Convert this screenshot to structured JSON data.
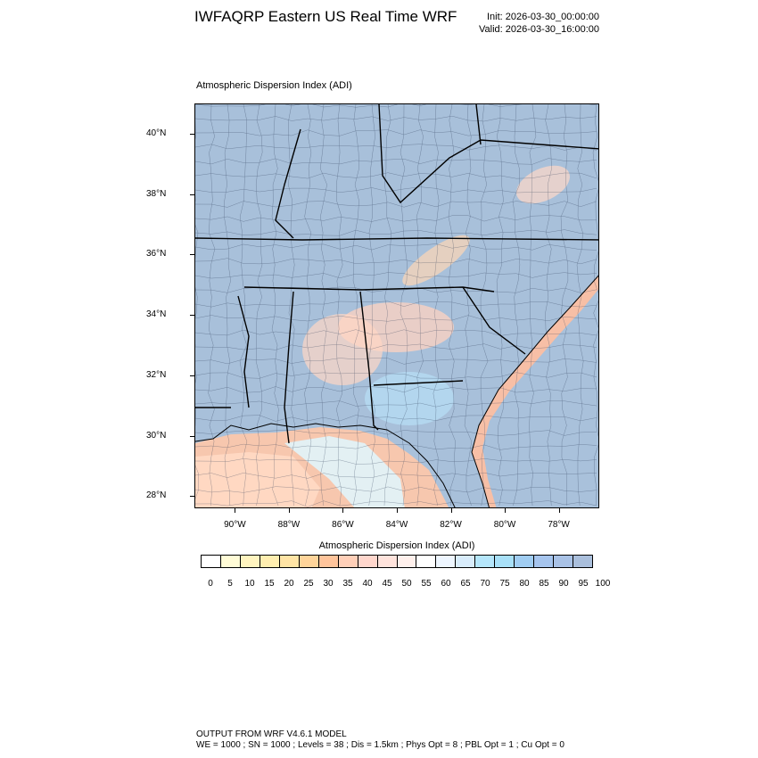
{
  "header": {
    "title": "IWFAQRP Eastern US Real Time WRF",
    "init": "Init: 2026-03-30_00:00:00",
    "valid": "Valid: 2026-03-30_16:00:00"
  },
  "plot": {
    "label": "Atmospheric Dispersion Index   (ADI)",
    "lat_ticks": [
      "40°N",
      "38°N",
      "36°N",
      "34°N",
      "32°N",
      "30°N",
      "28°N"
    ],
    "lon_ticks": [
      "90°W",
      "88°W",
      "86°W",
      "84°W",
      "82°W",
      "80°W",
      "78°W"
    ],
    "lat_values": [
      40,
      38,
      36,
      34,
      32,
      30,
      28
    ],
    "lon_values": [
      -90,
      -88,
      -86,
      -84,
      -82,
      -80,
      -78
    ],
    "lat_range": [
      27.6,
      41.0
    ],
    "lon_range": [
      -91.5,
      -76.5
    ]
  },
  "colorbar": {
    "title": "Atmospheric Dispersion Index  (ADI)",
    "labels": [
      "0",
      "5",
      "10",
      "15",
      "20",
      "25",
      "30",
      "35",
      "40",
      "45",
      "50",
      "55",
      "60",
      "65",
      "70",
      "75",
      "80",
      "85",
      "90",
      "95",
      "100"
    ],
    "colors": [
      "#ffffff",
      "#fffbd6",
      "#fff4bf",
      "#ffeeb0",
      "#ffe4a5",
      "#ffd49a",
      "#ffc49b",
      "#ffcfb8",
      "#ffd6cc",
      "#ffe3dc",
      "#fff0ec",
      "#ffffff",
      "#eef6ff",
      "#d8ecfb",
      "#b5e6fb",
      "#a8e0f8",
      "#a0cdf2",
      "#a6c5ee",
      "#a9c2e6",
      "#aabfdc"
    ]
  },
  "footer": {
    "line1": "OUTPUT FROM WRF V4.6.1 MODEL",
    "line2": "WE = 1000 ; SN = 1000 ; Levels = 38 ; Dis = 1.5km ; Phys Opt = 8 ; PBL Opt = 1 ; Cu Opt = 0"
  }
}
